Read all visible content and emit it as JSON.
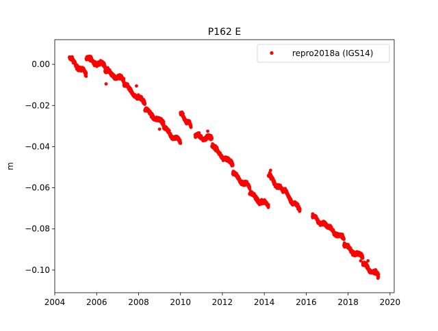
{
  "chart_data": {
    "type": "scatter",
    "title": "P162 E",
    "xlabel": "",
    "ylabel": "m",
    "xlim": [
      2004.0,
      2020.2
    ],
    "ylim": [
      -0.111,
      0.012
    ],
    "grid": false,
    "legend_position": "top-right",
    "x_ticks": [
      2004,
      2006,
      2008,
      2010,
      2012,
      2014,
      2016,
      2018,
      2020
    ],
    "x_tick_labels": [
      "2004",
      "2006",
      "2008",
      "2010",
      "2012",
      "2014",
      "2016",
      "2018",
      "2020"
    ],
    "y_ticks": [
      0.0,
      -0.02,
      -0.04,
      -0.06,
      -0.08,
      -0.1
    ],
    "y_tick_labels": [
      "0.00",
      "−0.02",
      "−0.04",
      "−0.06",
      "−0.08",
      "−0.10"
    ],
    "series": [
      {
        "name": "repro2018a (IGS14)",
        "color": "#ff0000",
        "marker": "dot",
        "segments": [
          {
            "x_start": 2004.7,
            "x_end": 2005.5,
            "y_start": 0.003,
            "y_end": -0.005
          },
          {
            "x_start": 2005.5,
            "x_end": 2006.4,
            "y_start": 0.003,
            "y_end": -0.001
          },
          {
            "x_start": 2006.4,
            "x_end": 2007.3,
            "y_start": -0.003,
            "y_end": -0.008
          },
          {
            "x_start": 2007.3,
            "x_end": 2008.3,
            "y_start": -0.01,
            "y_end": -0.019
          },
          {
            "x_start": 2008.3,
            "x_end": 2009.2,
            "y_start": -0.022,
            "y_end": -0.029
          },
          {
            "x_start": 2009.2,
            "x_end": 2010.0,
            "y_start": -0.031,
            "y_end": -0.038
          },
          {
            "x_start": 2010.0,
            "x_end": 2010.5,
            "y_start": -0.024,
            "y_end": -0.03
          },
          {
            "x_start": 2010.7,
            "x_end": 2011.5,
            "y_start": -0.035,
            "y_end": -0.036
          },
          {
            "x_start": 2011.5,
            "x_end": 2012.5,
            "y_start": -0.04,
            "y_end": -0.049
          },
          {
            "x_start": 2012.5,
            "x_end": 2013.3,
            "y_start": -0.053,
            "y_end": -0.06
          },
          {
            "x_start": 2013.3,
            "x_end": 2014.2,
            "y_start": -0.063,
            "y_end": -0.069
          },
          {
            "x_start": 2014.2,
            "x_end": 2014.9,
            "y_start": -0.054,
            "y_end": -0.062
          },
          {
            "x_start": 2014.9,
            "x_end": 2015.7,
            "y_start": -0.061,
            "y_end": -0.071
          },
          {
            "x_start": 2016.3,
            "x_end": 2017.0,
            "y_start": -0.074,
            "y_end": -0.079
          },
          {
            "x_start": 2017.0,
            "x_end": 2017.8,
            "y_start": -0.079,
            "y_end": -0.085
          },
          {
            "x_start": 2017.8,
            "x_end": 2018.7,
            "y_start": -0.088,
            "y_end": -0.094
          },
          {
            "x_start": 2018.7,
            "x_end": 2019.45,
            "y_start": -0.097,
            "y_end": -0.103
          }
        ],
        "outliers": [
          {
            "x": 2006.45,
            "y": -0.0095
          },
          {
            "x": 2007.9,
            "y": -0.0105
          },
          {
            "x": 2009.0,
            "y": -0.0315
          },
          {
            "x": 2011.3,
            "y": -0.0325
          },
          {
            "x": 2014.3,
            "y": -0.0515
          },
          {
            "x": 2018.95,
            "y": -0.0955
          },
          {
            "x": 2018.6,
            "y": -0.0955
          }
        ]
      }
    ]
  }
}
